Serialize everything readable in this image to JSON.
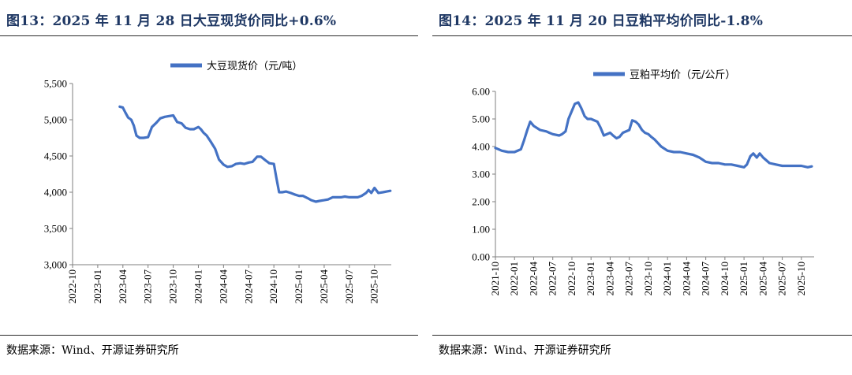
{
  "panels": [
    {
      "title": "图13：2025 年 11 月 28 日大豆现货价同比+0.6%",
      "source": "数据来源：Wind、开源证券研究所"
    },
    {
      "title": "图14：2025 年 11 月 20 日豆粕平均价同比-1.8%",
      "source": "数据来源：Wind、开源证券研究所"
    }
  ],
  "chart_data": [
    {
      "type": "line",
      "title": "",
      "legend": "大豆现货价（元/吨）",
      "legend_position": "top-center",
      "grid": false,
      "series_color": "#4472c4",
      "ylim": [
        3000,
        5500
      ],
      "yticks": [
        "3,000",
        "3,500",
        "4,000",
        "4,500",
        "5,000",
        "5,500"
      ],
      "ytick_values": [
        3000,
        3500,
        4000,
        4500,
        5000,
        5500
      ],
      "xlim": [
        "2022-10",
        "2025-12"
      ],
      "xticks": [
        "2022-10",
        "2023-01",
        "2023-04",
        "2023-07",
        "2023-10",
        "2024-01",
        "2024-04",
        "2024-07",
        "2024-10",
        "2025-01",
        "2025-04",
        "2025-07",
        "2025-10"
      ],
      "series": [
        {
          "x": [
            "2023-03-20",
            "2023-03-31",
            "2023-04-10",
            "2023-04-20",
            "2023-05-01",
            "2023-05-10",
            "2023-05-20",
            "2023-06-01",
            "2023-06-15",
            "2023-07-01",
            "2023-07-15",
            "2023-08-01",
            "2023-08-15",
            "2023-09-01",
            "2023-09-15",
            "2023-10-01",
            "2023-10-15",
            "2023-11-01",
            "2023-11-15",
            "2023-12-01",
            "2023-12-15",
            "2024-01-01",
            "2024-01-10",
            "2024-01-20",
            "2024-02-01",
            "2024-02-15",
            "2024-03-01",
            "2024-03-15",
            "2024-04-01",
            "2024-04-15",
            "2024-05-01",
            "2024-05-15",
            "2024-06-01",
            "2024-06-15",
            "2024-07-01",
            "2024-07-15",
            "2024-08-01",
            "2024-08-15",
            "2024-09-01",
            "2024-09-15",
            "2024-10-01",
            "2024-10-10",
            "2024-10-20",
            "2024-11-01",
            "2024-11-15",
            "2024-12-01",
            "2024-12-15",
            "2025-01-01",
            "2025-01-15",
            "2025-02-01",
            "2025-02-15",
            "2025-03-01",
            "2025-03-15",
            "2025-04-01",
            "2025-04-15",
            "2025-05-01",
            "2025-05-15",
            "2025-06-01",
            "2025-06-15",
            "2025-07-01",
            "2025-07-15",
            "2025-08-01",
            "2025-08-15",
            "2025-09-01",
            "2025-09-10",
            "2025-09-20",
            "2025-10-01",
            "2025-10-15",
            "2025-11-01",
            "2025-11-15",
            "2025-11-28"
          ],
          "y": [
            5180,
            5170,
            5100,
            5030,
            5000,
            4920,
            4780,
            4750,
            4750,
            4760,
            4900,
            4960,
            5020,
            5040,
            5050,
            5060,
            4970,
            4950,
            4890,
            4870,
            4870,
            4900,
            4870,
            4820,
            4780,
            4700,
            4600,
            4450,
            4380,
            4350,
            4360,
            4390,
            4400,
            4390,
            4410,
            4420,
            4490,
            4490,
            4440,
            4400,
            4390,
            4200,
            4000,
            4000,
            4010,
            3990,
            3970,
            3950,
            3950,
            3920,
            3890,
            3870,
            3880,
            3890,
            3900,
            3930,
            3930,
            3930,
            3940,
            3930,
            3930,
            3930,
            3950,
            3990,
            4030,
            3990,
            4060,
            3990,
            4000,
            4010,
            4020
          ]
        }
      ]
    },
    {
      "type": "line",
      "title": "",
      "legend": "豆粕平均价（元/公斤）",
      "legend_position": "top-center",
      "grid": false,
      "series_color": "#4472c4",
      "ylim": [
        0,
        6
      ],
      "yticks": [
        "0.00",
        "1.00",
        "2.00",
        "3.00",
        "4.00",
        "5.00",
        "6.00"
      ],
      "ytick_values": [
        0,
        1,
        2,
        3,
        4,
        5,
        6
      ],
      "xlim": [
        "2021-10",
        "2025-12"
      ],
      "xticks": [
        "2021-10",
        "2022-01",
        "2022-04",
        "2022-07",
        "2022-10",
        "2023-01",
        "2023-04",
        "2023-07",
        "2023-10",
        "2024-01",
        "2024-04",
        "2024-07",
        "2024-10",
        "2025-01",
        "2025-04",
        "2025-07",
        "2025-10"
      ],
      "series": [
        {
          "x": [
            "2021-10-01",
            "2021-11-01",
            "2021-12-01",
            "2022-01-01",
            "2022-02-01",
            "2022-02-15",
            "2022-03-01",
            "2022-03-15",
            "2022-04-01",
            "2022-05-01",
            "2022-06-01",
            "2022-06-15",
            "2022-07-01",
            "2022-08-01",
            "2022-08-15",
            "2022-09-01",
            "2022-09-15",
            "2022-10-01",
            "2022-10-15",
            "2022-11-01",
            "2022-11-15",
            "2022-12-01",
            "2022-12-15",
            "2023-01-01",
            "2023-02-01",
            "2023-02-15",
            "2023-03-01",
            "2023-04-01",
            "2023-04-15",
            "2023-05-01",
            "2023-05-15",
            "2023-06-01",
            "2023-07-01",
            "2023-07-15",
            "2023-08-01",
            "2023-08-15",
            "2023-09-01",
            "2023-09-15",
            "2023-10-01",
            "2023-10-15",
            "2023-11-01",
            "2023-12-01",
            "2024-01-01",
            "2024-02-01",
            "2024-03-01",
            "2024-04-01",
            "2024-05-01",
            "2024-06-01",
            "2024-07-01",
            "2024-08-01",
            "2024-09-01",
            "2024-10-01",
            "2024-11-01",
            "2024-12-01",
            "2025-01-01",
            "2025-01-15",
            "2025-02-01",
            "2025-02-15",
            "2025-03-01",
            "2025-03-15",
            "2025-04-01",
            "2025-05-01",
            "2025-06-01",
            "2025-07-01",
            "2025-08-01",
            "2025-09-01",
            "2025-10-01",
            "2025-11-01",
            "2025-11-20"
          ],
          "y": [
            3.95,
            3.85,
            3.8,
            3.8,
            3.9,
            4.2,
            4.6,
            4.9,
            4.75,
            4.6,
            4.55,
            4.5,
            4.45,
            4.4,
            4.45,
            4.55,
            5.0,
            5.3,
            5.55,
            5.6,
            5.4,
            5.1,
            5.0,
            5.0,
            4.9,
            4.7,
            4.4,
            4.5,
            4.4,
            4.3,
            4.35,
            4.5,
            4.6,
            4.95,
            4.9,
            4.8,
            4.6,
            4.5,
            4.45,
            4.35,
            4.25,
            4.0,
            3.85,
            3.8,
            3.8,
            3.75,
            3.7,
            3.6,
            3.45,
            3.4,
            3.4,
            3.35,
            3.35,
            3.3,
            3.25,
            3.35,
            3.65,
            3.75,
            3.6,
            3.75,
            3.6,
            3.4,
            3.35,
            3.3,
            3.3,
            3.3,
            3.3,
            3.25,
            3.28
          ]
        }
      ]
    }
  ]
}
